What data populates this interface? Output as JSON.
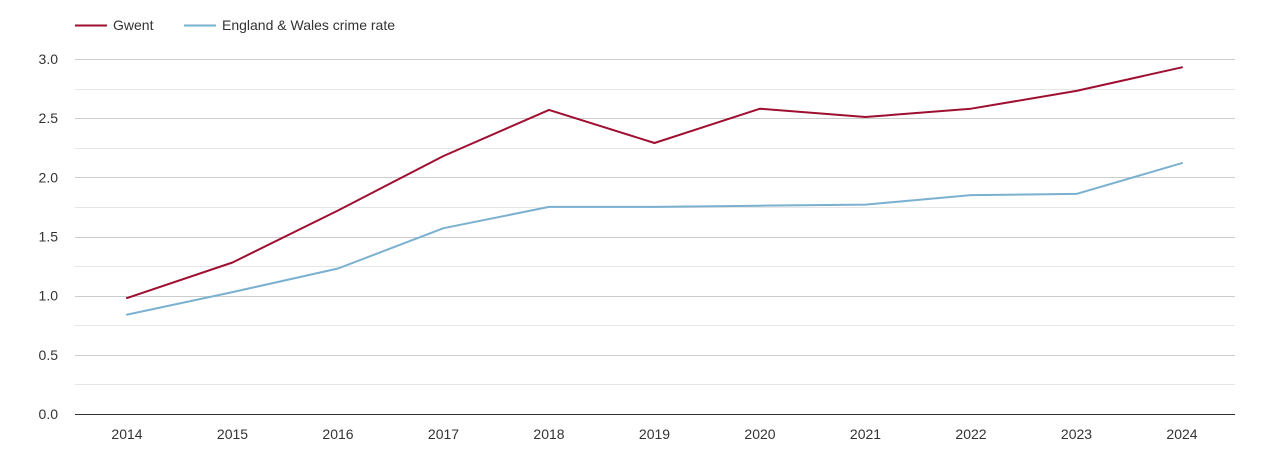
{
  "chart_data": {
    "type": "line",
    "title": "",
    "xlabel": "",
    "ylabel": "",
    "categories": [
      "2014",
      "2015",
      "2016",
      "2017",
      "2018",
      "2019",
      "2020",
      "2021",
      "2022",
      "2023",
      "2024"
    ],
    "series": [
      {
        "name": "Gwent",
        "color": "#9e0f32",
        "values": [
          0.98,
          1.28,
          1.72,
          2.18,
          2.57,
          2.29,
          2.58,
          2.51,
          2.58,
          2.73,
          2.93
        ]
      },
      {
        "name": "England & Wales crime rate",
        "color": "#7ab0d0",
        "values": [
          0.84,
          1.03,
          1.23,
          1.57,
          1.75,
          1.75,
          1.76,
          1.77,
          1.85,
          1.86,
          2.12
        ]
      }
    ],
    "ylim": [
      0,
      3.0
    ],
    "yticks": [
      "0.0",
      "0.5",
      "1.0",
      "1.5",
      "2.0",
      "2.5",
      "3.0"
    ],
    "grid": true,
    "minor_grid": true,
    "legend_position": "top-left",
    "colors": {
      "grid": "#cccccc",
      "minor_grid": "#e6e6e6",
      "axis": "#333333",
      "text": "#333333"
    }
  }
}
